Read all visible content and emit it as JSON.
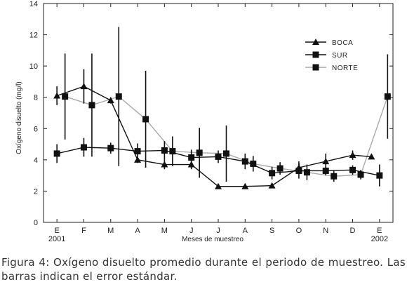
{
  "chart_data": {
    "type": "line",
    "title": "",
    "xlabel": "Meses de muestreo",
    "ylabel": "Oxígeno disuelto (mg/l)",
    "ylim": [
      0,
      14
    ],
    "yticks": [
      0,
      2,
      4,
      6,
      8,
      10,
      12,
      14
    ],
    "xlim": [
      -0.5,
      12.5
    ],
    "categories": [
      "E",
      "F",
      "M",
      "A",
      "M",
      "J",
      "J",
      "A",
      "S",
      "O",
      "N",
      "D",
      "E"
    ],
    "year_labels": [
      {
        "x": 0,
        "label": "2001"
      },
      {
        "x": 12,
        "label": "2002"
      }
    ],
    "grid": false,
    "legend": "top-right",
    "series": [
      {
        "name": "BOCA",
        "marker": "triangle",
        "color": "#111111",
        "points": [
          {
            "x": 0,
            "y": 8.1,
            "err": 0.6
          },
          {
            "x": 1,
            "y": 8.7,
            "err": 1.1
          },
          {
            "x": 2,
            "y": 7.8,
            "err": 0.2
          },
          {
            "x": 3,
            "y": 4.0,
            "err": 0.2
          },
          {
            "x": 4,
            "y": 3.7,
            "err": 0.3
          },
          {
            "x": 5,
            "y": 3.7,
            "err": 0.3
          },
          {
            "x": 6,
            "y": 2.3,
            "err": 0.15
          },
          {
            "x": 7,
            "y": 2.3,
            "err": 0.1
          },
          {
            "x": 8,
            "y": 2.35,
            "err": 0.1
          },
          {
            "x": 9,
            "y": 3.5,
            "err": 0.4
          },
          {
            "x": 10,
            "y": 3.9,
            "err": 0.5
          },
          {
            "x": 11,
            "y": 4.3,
            "err": 0.3
          },
          {
            "x": 11.7,
            "y": 4.2,
            "err": 0
          }
        ]
      },
      {
        "name": "SUR",
        "marker": "square",
        "color": "#111111",
        "points": [
          {
            "x": 0,
            "y": 4.4,
            "err": 0.6
          },
          {
            "x": 1,
            "y": 4.8,
            "err": 0.6
          },
          {
            "x": 2,
            "y": 4.75,
            "err": 0.35
          },
          {
            "x": 3,
            "y": 4.55,
            "err": 0.5
          },
          {
            "x": 4,
            "y": 4.6,
            "err": 0.6
          },
          {
            "x": 5,
            "y": 4.15,
            "err": 0.5
          },
          {
            "x": 6,
            "y": 4.2,
            "err": 0.4
          },
          {
            "x": 7,
            "y": 3.9,
            "err": 0.5
          },
          {
            "x": 8,
            "y": 3.15,
            "err": 0.4
          },
          {
            "x": 9,
            "y": 3.3,
            "err": 0.5
          },
          {
            "x": 10,
            "y": 3.3,
            "err": 0.3
          },
          {
            "x": 11,
            "y": 3.35,
            "err": 0.3
          },
          {
            "x": 12,
            "y": 3.0,
            "err": 0.7
          }
        ]
      },
      {
        "name": "NORTE",
        "marker": "square",
        "color": "#999999",
        "points": [
          {
            "x": 0.3,
            "y": 8.05,
            "err": 2.75
          },
          {
            "x": 1.3,
            "y": 7.5,
            "err": 3.3
          },
          {
            "x": 2.3,
            "y": 8.05,
            "err": 4.45
          },
          {
            "x": 3.3,
            "y": 6.6,
            "err": 3.1
          },
          {
            "x": 4.3,
            "y": 4.55,
            "err": 0.95
          },
          {
            "x": 5.3,
            "y": 4.45,
            "err": 1.6
          },
          {
            "x": 6.3,
            "y": 4.4,
            "err": 1.8
          },
          {
            "x": 7.3,
            "y": 3.75,
            "err": 0.5
          },
          {
            "x": 8.3,
            "y": 3.45,
            "err": 0.4
          },
          {
            "x": 9.3,
            "y": 3.2,
            "err": 0.5
          },
          {
            "x": 10.3,
            "y": 2.95,
            "err": 0.35
          },
          {
            "x": 11.3,
            "y": 3.05,
            "err": 0.3
          },
          {
            "x": 12.3,
            "y": 8.05,
            "err": 2.7
          }
        ]
      }
    ]
  },
  "caption": "Figura 4: Oxígeno disuelto promedio durante el periodo de muestreo. Las barras indican el error estándar."
}
